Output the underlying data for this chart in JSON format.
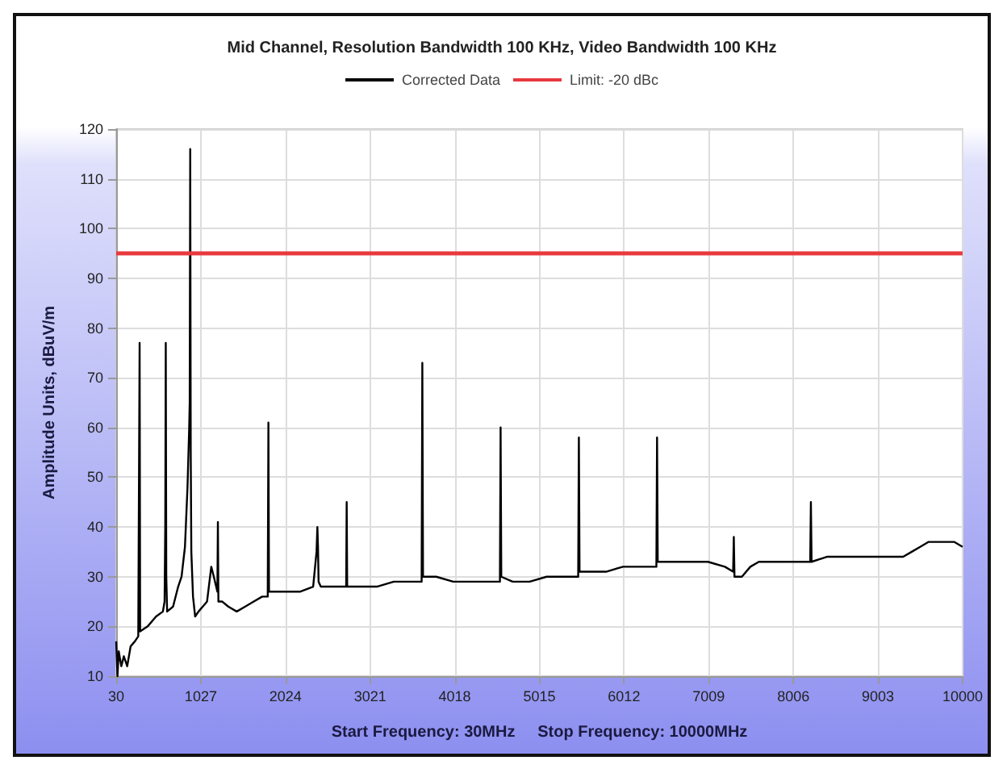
{
  "chart_data": {
    "type": "line",
    "title": "Mid Channel, Resolution Bandwidth 100 KHz, Video Bandwidth 100 KHz",
    "xlabel": "Start Frequency: 30MHz     Stop Frequency: 10000MHz",
    "ylabel": "Amplitude Units, dBuV/m",
    "xlim": [
      30,
      10000
    ],
    "xticks": [
      30,
      1027,
      2024,
      3021,
      4018,
      5015,
      6012,
      7009,
      8006,
      9003,
      10000
    ],
    "ylim": [
      10,
      120
    ],
    "yticks": [
      10,
      20,
      30,
      40,
      50,
      60,
      70,
      80,
      90,
      100,
      110,
      120
    ],
    "grid": true,
    "legend": "top",
    "marker": "none",
    "line_style": "solid",
    "series": [
      {
        "name": "Corrected Data",
        "color": "#000000",
        "x": [
          30,
          45,
          60,
          90,
          120,
          160,
          200,
          250,
          290,
          300,
          306,
          312,
          320,
          400,
          500,
          580,
          600,
          608,
          614,
          620,
          630,
          700,
          760,
          800,
          840,
          870,
          890,
          896,
          902,
          908,
          915,
          935,
          960,
          1000,
          1050,
          1100,
          1150,
          1180,
          1222,
          1228,
          1234,
          1280,
          1350,
          1450,
          1550,
          1650,
          1750,
          1815,
          1823,
          1830,
          1900,
          2050,
          2200,
          2350,
          2390,
          2400,
          2407,
          2414,
          2440,
          2500,
          2650,
          2739,
          2745,
          2751,
          2900,
          3100,
          3300,
          3500,
          3628,
          3636,
          3644,
          3800,
          4000,
          4200,
          4400,
          4550,
          4558,
          4566,
          4700,
          4900,
          5100,
          5300,
          5472,
          5480,
          5488,
          5600,
          5800,
          6000,
          6200,
          6393,
          6401,
          6409,
          6600,
          6800,
          7000,
          7200,
          7297,
          7305,
          7313,
          7400,
          7500,
          7600,
          7800,
          8000,
          8205,
          8213,
          8221,
          8400,
          8600,
          8800,
          9000,
          9200,
          9300,
          9400,
          9500,
          9600,
          9700,
          9800,
          9900,
          10000
        ],
        "values": [
          17,
          10,
          15,
          12,
          14,
          12,
          16,
          17,
          18,
          18,
          77,
          19,
          19,
          20,
          22,
          23,
          25,
          40,
          77,
          30,
          23,
          24,
          28,
          30,
          36,
          48,
          60,
          65,
          116,
          55,
          35,
          26,
          22,
          23,
          24,
          25,
          32,
          30,
          27,
          41,
          25,
          25,
          24,
          23,
          24,
          25,
          26,
          26,
          61,
          27,
          27,
          27,
          27,
          28,
          35,
          40,
          36,
          29,
          28,
          28,
          28,
          28,
          45,
          28,
          28,
          28,
          29,
          29,
          29,
          73,
          30,
          30,
          29,
          29,
          29,
          29,
          60,
          30,
          29,
          29,
          30,
          30,
          30,
          58,
          31,
          31,
          31,
          32,
          32,
          32,
          58,
          33,
          33,
          33,
          33,
          32,
          31,
          38,
          30,
          30,
          32,
          33,
          33,
          33,
          33,
          45,
          33,
          34,
          34,
          34,
          34,
          34,
          34,
          35,
          36,
          37,
          37,
          37,
          37,
          36
        ]
      },
      {
        "name": "Limit: -20 dBc",
        "color": "#e8393f",
        "x": [
          30,
          10000
        ],
        "values": [
          95,
          95
        ]
      }
    ]
  }
}
